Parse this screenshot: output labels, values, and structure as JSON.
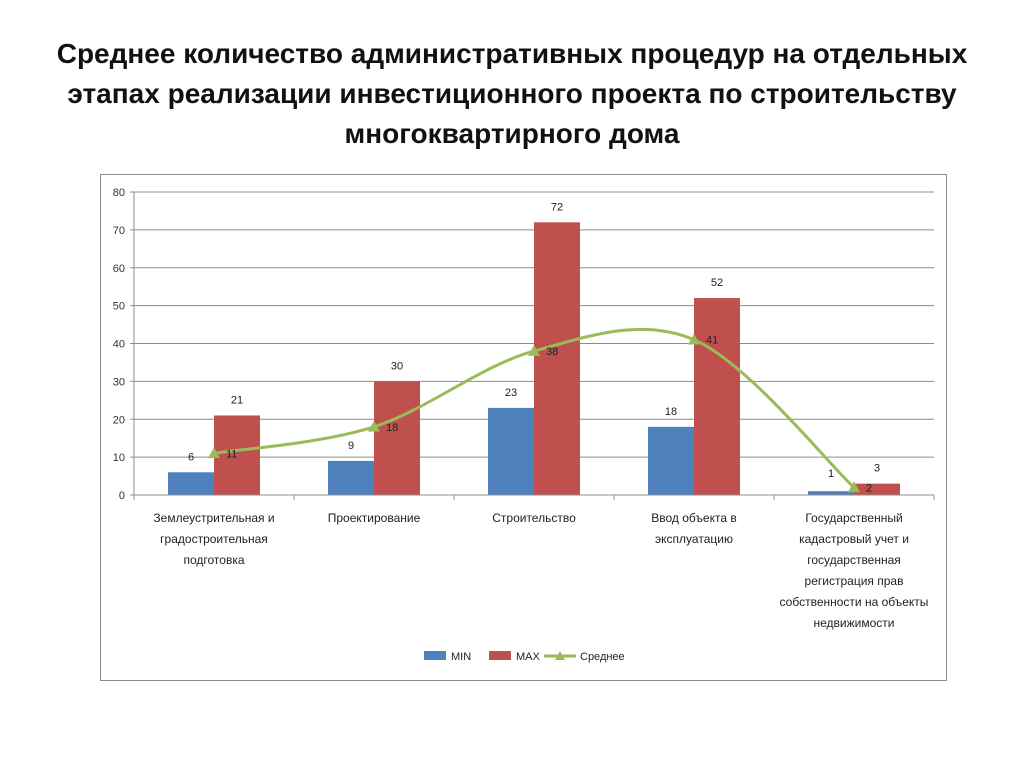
{
  "slide": {
    "title": "Среднее количество административных процедур на отдельных этапах реализации инвестиционного проекта по строительству многоквартирного дома"
  },
  "chart_data": {
    "type": "bar",
    "title": "",
    "xlabel": "",
    "ylabel": "",
    "ylim": [
      0,
      80
    ],
    "yticks": [
      0,
      10,
      20,
      30,
      40,
      50,
      60,
      70,
      80
    ],
    "grid": "horizontal",
    "legend_position": "bottom",
    "categories": [
      [
        "Землеустрительная и",
        "градостроительная",
        "подготовка"
      ],
      [
        "Проектирование"
      ],
      [
        "Строительство"
      ],
      [
        "Ввод объекта в",
        "эксплуатацию"
      ],
      [
        "Государственный",
        "кадастровый учет и",
        "государственная",
        "регистрация прав",
        "собственности на объекты",
        "недвижимости"
      ]
    ],
    "series": [
      {
        "name": "MIN",
        "type": "bar",
        "color": "#4F81BD",
        "values": [
          6,
          9,
          23,
          18,
          1
        ]
      },
      {
        "name": "MAX",
        "type": "bar",
        "color": "#C0504D",
        "values": [
          21,
          30,
          72,
          52,
          3
        ]
      },
      {
        "name": "Среднее",
        "type": "line",
        "smooth": true,
        "marker": "triangle",
        "color": "#9BBB59",
        "values": [
          11,
          18,
          38,
          41,
          2
        ]
      }
    ]
  }
}
